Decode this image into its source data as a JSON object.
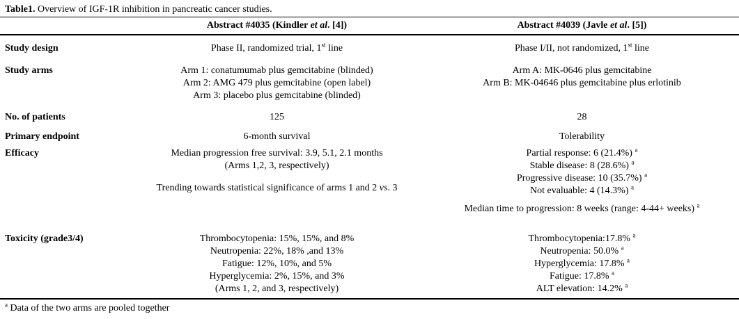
{
  "title": {
    "bold": "Table1.",
    "rest": " Overview of IGF-1R inhibition in pancreatic cancer studies."
  },
  "header": {
    "col1": {
      "pre": "Abstract #4035 (Kindler ",
      "italic": "et al",
      "post": ". [4])"
    },
    "col2": {
      "pre": "Abstract #4039 (Javle ",
      "italic": "et al",
      "post": ". [5])"
    }
  },
  "rows": {
    "study_design": {
      "label": "Study design",
      "col1": {
        "pre": "Phase II, randomized trial, 1",
        "sup": "st",
        "post": " line"
      },
      "col2": {
        "pre": "Phase I/II, not randomized, 1",
        "sup": "st",
        "post": " line"
      }
    },
    "study_arms": {
      "label": "Study arms",
      "col1": [
        "Arm 1: conatumumab plus gemcitabine (blinded)",
        "Arm 2: AMG 479 plus gemcitabine (open label)",
        "Arm 3: placebo plus gemcitabine (blinded)"
      ],
      "col2": [
        "Arm A: MK-0646 plus gemcitabine",
        "Arm B: MK-04646 plus gemcitabine plus erlotinib"
      ]
    },
    "patients": {
      "label": "No. of patients",
      "col1": "125",
      "col2": "28"
    },
    "endpoint": {
      "label": "Primary endpoint",
      "col1": "6-month survival",
      "col2": "Tolerability"
    },
    "efficacy": {
      "label": "Efficacy",
      "col1_p1": [
        "Median progression free survival: 3.9, 5.1, 2.1 months",
        "(Arms 1,2, 3, respectively)"
      ],
      "col1_p2": {
        "pre": "Trending towards statistical significance of arms 1 and 2 ",
        "italic": "vs",
        "post": ". 3"
      },
      "col2_lines": [
        {
          "text": "Partial response: 6 (21.4%) ",
          "sup": "a"
        },
        {
          "text": "Stable disease: 8 (28.6%) ",
          "sup": "a"
        },
        {
          "text": "Progressive disease: 10 (35.7%) ",
          "sup": "a"
        },
        {
          "text": "Not evaluable: 4 (14.3%) ",
          "sup": "a"
        }
      ],
      "col2_p2": {
        "text": "Median time to progression: 8 weeks (range: 4-44+ weeks) ",
        "sup": "a"
      }
    },
    "toxicity": {
      "label": "Toxicity (grade3/4)",
      "col1": [
        "Thrombocytopenia: 15%, 15%, and 8%",
        "Neutropenia: 22%, 18% ,and 13%",
        "Fatigue: 12%, 10%, and 5%",
        "Hyperglycemia: 2%, 15%, and 3%",
        "(Arms 1, 2, and 3, respectively)"
      ],
      "col2": [
        {
          "text": "Thrombocytopenia:17.8% ",
          "sup": "a"
        },
        {
          "text": "Neutropenia: 50.0% ",
          "sup": "a"
        },
        {
          "text": "Hyperglycemia: 17.8% ",
          "sup": "a"
        },
        {
          "text": "Fatigue: 17.8% ",
          "sup": "a"
        },
        {
          "text": "ALT elevation: 14.2% ",
          "sup": "a"
        }
      ]
    }
  },
  "footnote": {
    "sup": "a",
    "text": " Data of the two arms are pooled together"
  }
}
